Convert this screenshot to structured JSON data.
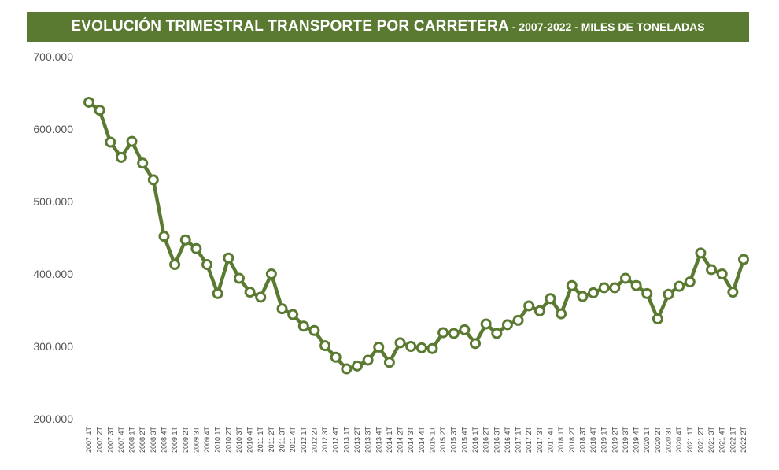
{
  "header": {
    "title_main": "EVOLUCIÓN TRIMESTRAL TRANSPORTE POR CARRETERA",
    "title_sub": " - 2007-2022 - MILES DE TONELADAS"
  },
  "colors": {
    "line": "#5b7a31",
    "title_bg": "#5b7a31",
    "marker_fill": "#ffffff"
  },
  "chart_data": {
    "type": "line",
    "title": "EVOLUCIÓN TRIMESTRAL TRANSPORTE POR CARRETERA - 2007-2022 - MILES DE TONELADAS",
    "xlabel": "",
    "ylabel": "",
    "ylim": [
      200000,
      700000
    ],
    "yticks": [
      "200.000",
      "300.000",
      "400.000",
      "500.000",
      "600.000",
      "700.000"
    ],
    "grid": false,
    "categories": [
      "2007 1T",
      "2007 2T",
      "2007 3T",
      "2007 4T",
      "2008 1T",
      "2008 2T",
      "2008 3T",
      "2008 4T",
      "2009 1T",
      "2009 2T",
      "2009 3T",
      "2009 4T",
      "2010 1T",
      "2010 2T",
      "2010 3T",
      "2010 4T",
      "2011 1T",
      "2011 2T",
      "2011 3T",
      "2011 4T",
      "2012 1T",
      "2012 2T",
      "2012 3T",
      "2012 4T",
      "2013 1T",
      "2013 2T",
      "2013 3T",
      "2013 4T",
      "2014 1T",
      "2014 2T",
      "2014 3T",
      "2014 4T",
      "2015 1T",
      "2015 2T",
      "2015 3T",
      "2015 4T",
      "2016 1T",
      "2016 2T",
      "2016 3T",
      "2016 4T",
      "2017 1T",
      "2017 2T",
      "2017 3T",
      "2017 4T",
      "2018 1T",
      "2018 2T",
      "2018 3T",
      "2018 4T",
      "2019 1T",
      "2019 2T",
      "2019 3T",
      "2019 4T",
      "2020 1T",
      "2020 2T",
      "2020 3T",
      "2020 4T",
      "2021 1T",
      "2021 2T",
      "2021 3T",
      "2021 4T",
      "2022 1T",
      "2022 2T"
    ],
    "series": [
      {
        "values": [
          637000,
          626000,
          582000,
          561000,
          583000,
          553000,
          530000,
          452000,
          413000,
          447000,
          435000,
          413000,
          373000,
          422000,
          394000,
          375000,
          368000,
          400000,
          352000,
          344000,
          328000,
          322000,
          301000,
          285000,
          269000,
          273000,
          281000,
          299000,
          278000,
          305000,
          300000,
          298000,
          297000,
          319000,
          318000,
          323000,
          304000,
          331000,
          318000,
          330000,
          336000,
          356000,
          349000,
          366000,
          345000,
          384000,
          369000,
          374000,
          381000,
          381000,
          394000,
          384000,
          373000,
          338000,
          372000,
          383000,
          389000,
          429000,
          406000,
          400000,
          375000,
          420000
        ]
      }
    ]
  }
}
